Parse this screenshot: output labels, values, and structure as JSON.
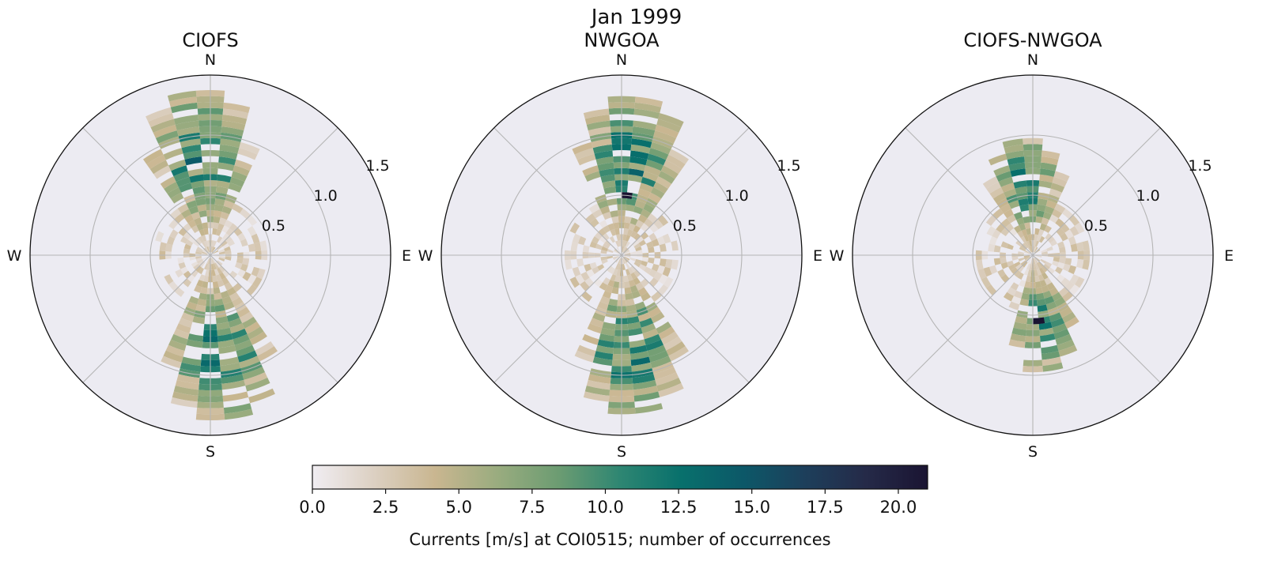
{
  "suptitle": "Jan 1999",
  "chart_data": [
    {
      "type": "polar-heatmap",
      "title": "CIOFS",
      "compass": [
        "N",
        "E",
        "S",
        "W"
      ],
      "r_ticks": [
        "0.5",
        "1.0",
        "1.5"
      ],
      "rlim": [
        0,
        1.5
      ],
      "direction_bins": 36,
      "speed_bin_width": 0.05,
      "dominant_directions_deg": [
        350,
        0,
        170,
        180
      ],
      "max_speed": 1.4,
      "peak": {
        "direction_deg": 350,
        "speed": 0.65,
        "count": 12
      }
    },
    {
      "type": "polar-heatmap",
      "title": "NWGOA",
      "compass": [
        "N",
        "E",
        "S",
        "W"
      ],
      "r_ticks": [
        "0.5",
        "1.0",
        "1.5"
      ],
      "rlim": [
        0,
        1.5
      ],
      "direction_bins": 36,
      "speed_bin_width": 0.05,
      "dominant_directions_deg": [
        0,
        10,
        170,
        180
      ],
      "max_speed": 1.35,
      "peak": {
        "direction_deg": 5,
        "speed": 0.5,
        "count": 21
      }
    },
    {
      "type": "polar-heatmap",
      "title": "CIOFS-NWGOA",
      "compass": [
        "N",
        "E",
        "S",
        "W"
      ],
      "r_ticks": [
        "0.5",
        "1.0",
        "1.5"
      ],
      "rlim": [
        0,
        1.5
      ],
      "direction_bins": 36,
      "speed_bin_width": 0.05,
      "dominant_directions_deg": [
        350,
        0,
        170,
        175
      ],
      "max_speed": 1.0,
      "peak": {
        "direction_deg": 175,
        "speed": 0.55,
        "count": 21
      }
    }
  ],
  "colorbar": {
    "label": "Currents [m/s] at COI0515; number of occurrences",
    "range": [
      0,
      21
    ],
    "ticks": [
      "0.0",
      "2.5",
      "5.0",
      "7.5",
      "10.0",
      "12.5",
      "15.0",
      "17.5",
      "20.0"
    ],
    "colormap": [
      "#f0edf2",
      "#dcd0c2",
      "#c9b690",
      "#9aac7f",
      "#6c9c72",
      "#2e8672",
      "#08706c",
      "#0c5868",
      "#1d3f5b",
      "#252a48",
      "#1a1432"
    ]
  }
}
